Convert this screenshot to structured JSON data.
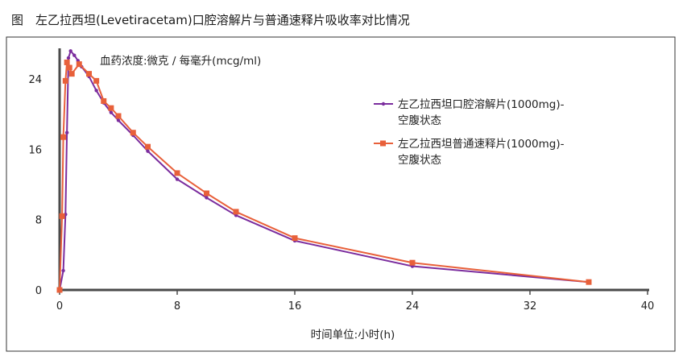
{
  "figure_title": "图　左乙拉西坦(Levetiracetam)口腔溶解片与普通速释片吸收率对比情况",
  "chart_data": {
    "type": "line",
    "title": "图　左乙拉西坦(Levetiracetam)口腔溶解片与普通速释片吸收率对比情况",
    "ylabel": "血药浓度:微克 / 每毫升(mcg/ml)",
    "xlabel": "时间单位:小时(h)",
    "xlim": [
      0,
      40
    ],
    "ylim": [
      0,
      27.5
    ],
    "x_ticks": [
      "0",
      "8",
      "16",
      "24",
      "32",
      "40"
    ],
    "y_ticks": [
      "0",
      "8",
      "16",
      "24"
    ],
    "x_tick_values": [
      0,
      8,
      16,
      24,
      32,
      40
    ],
    "y_tick_values": [
      0,
      8,
      16,
      24
    ],
    "grid": false,
    "legend_position": "right",
    "series": [
      {
        "name": "左乙拉西坦口腔溶解片(1000mg)-\n空腹状态",
        "color": "#7b2d9e",
        "marker": "circle",
        "points": [
          [
            0,
            0
          ],
          [
            0.25,
            2.2
          ],
          [
            0.4,
            8.6
          ],
          [
            0.5,
            17.9
          ],
          [
            0.6,
            26.4
          ],
          [
            0.75,
            27.2
          ],
          [
            1.0,
            26.7
          ],
          [
            1.25,
            26.1
          ],
          [
            1.5,
            25.4
          ],
          [
            2.0,
            24.3
          ],
          [
            2.5,
            22.7
          ],
          [
            3.0,
            21.3
          ],
          [
            3.5,
            20.2
          ],
          [
            4.0,
            19.3
          ],
          [
            5.0,
            17.6
          ],
          [
            6.0,
            15.8
          ],
          [
            8.0,
            12.6
          ],
          [
            10.0,
            10.5
          ],
          [
            12.0,
            8.5
          ],
          [
            16.0,
            5.6
          ],
          [
            24.0,
            2.7
          ],
          [
            36.0,
            0.9
          ]
        ]
      },
      {
        "name": "左乙拉西坦普通速释片(1000mg)-\n空腹状态",
        "color": "#e8603a",
        "marker": "square",
        "points": [
          [
            0,
            0
          ],
          [
            0.17,
            8.4
          ],
          [
            0.25,
            17.4
          ],
          [
            0.4,
            23.8
          ],
          [
            0.5,
            25.9
          ],
          [
            0.67,
            25.3
          ],
          [
            0.83,
            24.6
          ],
          [
            1.33,
            25.7
          ],
          [
            2.0,
            24.6
          ],
          [
            2.5,
            23.8
          ],
          [
            3.0,
            21.5
          ],
          [
            3.5,
            20.7
          ],
          [
            4.0,
            19.8
          ],
          [
            5.0,
            17.9
          ],
          [
            6.0,
            16.3
          ],
          [
            8.0,
            13.3
          ],
          [
            10.0,
            11.0
          ],
          [
            12.0,
            8.9
          ],
          [
            16.0,
            5.9
          ],
          [
            24.0,
            3.1
          ],
          [
            36.0,
            0.9
          ]
        ]
      }
    ]
  }
}
